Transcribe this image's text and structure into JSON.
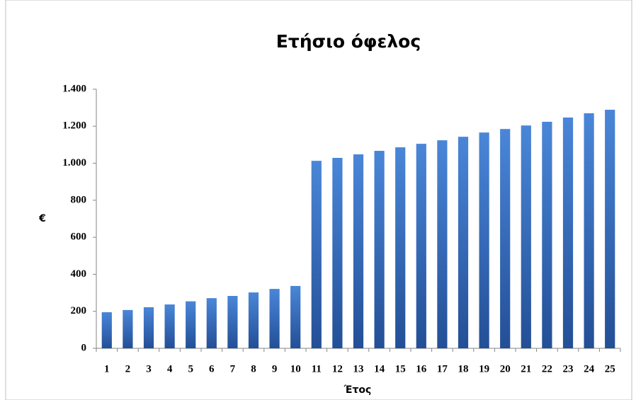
{
  "chart_data": {
    "type": "bar",
    "title": "Ετήσιο όφελος",
    "y_label": "€",
    "x_label": "Έτος",
    "categories": [
      "1",
      "2",
      "3",
      "4",
      "5",
      "6",
      "7",
      "8",
      "9",
      "10",
      "11",
      "12",
      "13",
      "14",
      "15",
      "16",
      "17",
      "18",
      "19",
      "20",
      "21",
      "22",
      "23",
      "24",
      "25"
    ],
    "values": [
      195,
      207,
      222,
      237,
      254,
      271,
      283,
      302,
      321,
      337,
      1013,
      1029,
      1048,
      1067,
      1086,
      1105,
      1124,
      1143,
      1166,
      1185,
      1204,
      1224,
      1247,
      1270,
      1289
    ],
    "color": "#4a86d8",
    "ylim": [
      0,
      1400
    ],
    "yticks": [
      0,
      200,
      400,
      600,
      800,
      {
        "value": 1000,
        "label": "1.000"
      },
      {
        "value": 1200,
        "label": "1.200"
      },
      {
        "value": 1400,
        "label": "1.400"
      }
    ],
    "grid": false
  }
}
